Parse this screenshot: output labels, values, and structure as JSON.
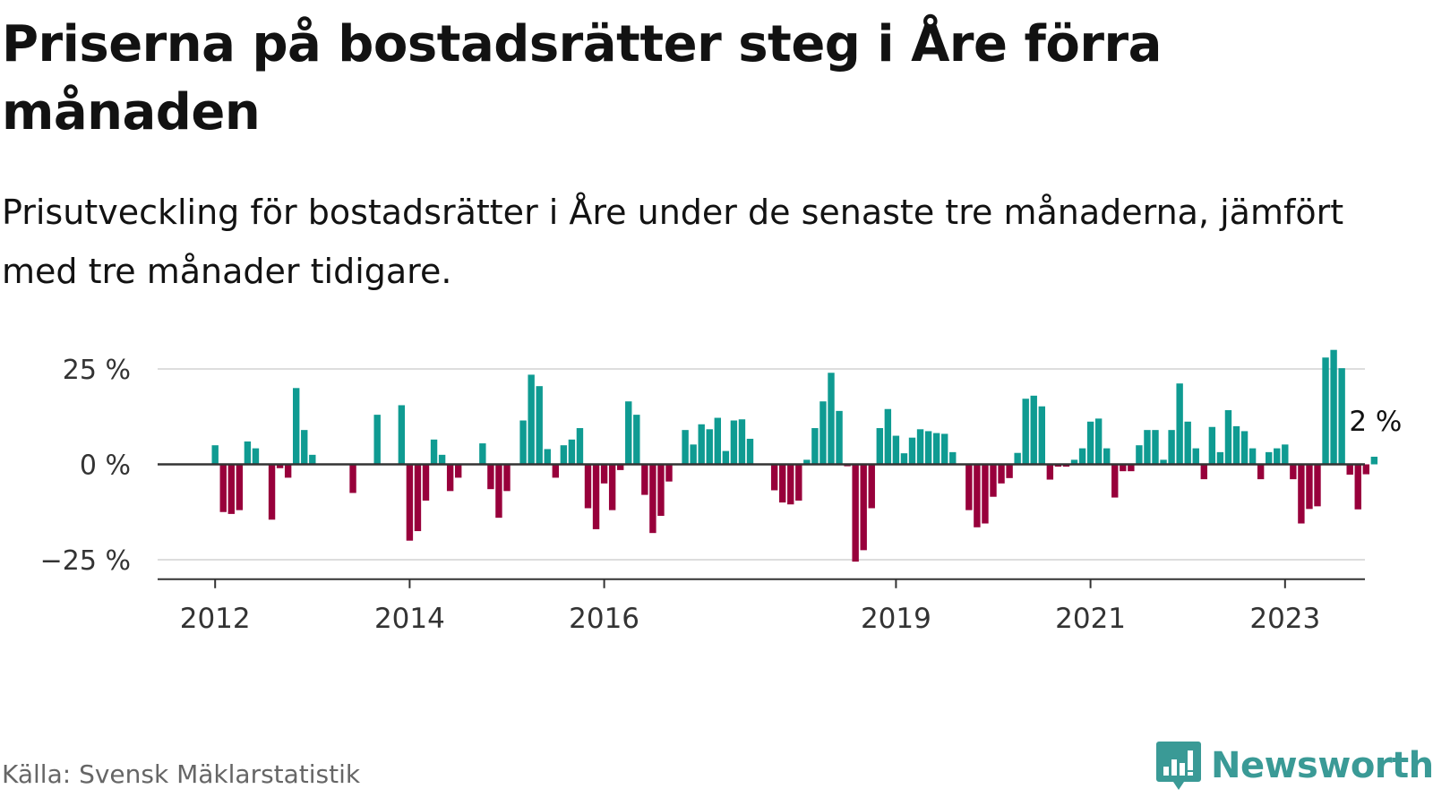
{
  "title": "Priserna på bostadsrätter steg i Åre förra månaden",
  "subtitle": "Prisutveckling för bostadsrätter i Åre under de senaste tre månaderna, jämfört med tre månader tidigare.",
  "source": "Källa: Svensk Mäklarstatistik",
  "logo_text": "Newsworthy",
  "colors": {
    "positive": "#0f9b92",
    "negative": "#98003b",
    "grid": "#dddddd",
    "axis": "#333333",
    "logo": "#3a9a96"
  },
  "chart_data": {
    "type": "bar",
    "start_month": "2011-03",
    "y_ticks": [
      {
        "value": 25,
        "label": "25 %"
      },
      {
        "value": 0,
        "label": "0 %"
      },
      {
        "value": -25,
        "label": "−25 %"
      }
    ],
    "x_ticks": [
      {
        "month": "2012-01",
        "label": "2012"
      },
      {
        "month": "2014-01",
        "label": "2014"
      },
      {
        "month": "2016-01",
        "label": "2016"
      },
      {
        "month": "2019-01",
        "label": "2019"
      },
      {
        "month": "2021-01",
        "label": "2021"
      },
      {
        "month": "2023-01",
        "label": "2023"
      }
    ],
    "ylim": [
      -30,
      33
    ],
    "grid": true,
    "annotation": {
      "text": "2 %"
    },
    "values": [
      null,
      null,
      null,
      null,
      null,
      null,
      null,
      null,
      null,
      null,
      5,
      -12.5,
      -13,
      -12,
      6,
      4.2,
      null,
      -14.5,
      -1,
      -3.5,
      20,
      9,
      2.5,
      null,
      null,
      null,
      null,
      -7.5,
      null,
      null,
      13,
      null,
      null,
      15.5,
      -20,
      -17.5,
      -9.5,
      6.5,
      2.5,
      -7,
      -3.5,
      null,
      null,
      5.5,
      -6.5,
      -14,
      -7,
      null,
      11.5,
      23.5,
      20.5,
      4,
      -3.5,
      5,
      6.5,
      9.5,
      -11.5,
      -17,
      -5,
      -12,
      -1.5,
      16.5,
      13,
      -8,
      -18,
      -13.5,
      -4.5,
      null,
      9,
      5.2,
      10.5,
      9.2,
      12.2,
      3.5,
      11.5,
      11.8,
      6.7,
      null,
      null,
      -6.8,
      -10,
      -10.5,
      -9.5,
      1.2,
      9.5,
      16.5,
      24,
      14,
      -0.5,
      -25.5,
      -22.5,
      -11.5,
      9.5,
      14.5,
      7.5,
      2.9,
      7,
      9.2,
      8.7,
      8.2,
      8,
      3.2,
      null,
      -12,
      -16.5,
      -15.5,
      -8.5,
      -5,
      -3.6,
      3,
      17.2,
      18,
      15.2,
      -4,
      -0.6,
      -0.6,
      1.2,
      4.2,
      11.2,
      12,
      4.2,
      -8.7,
      -1.8,
      -1.8,
      5,
      9,
      9,
      1.2,
      9,
      21.2,
      11.2,
      4.2,
      -3.9,
      9.8,
      3.2,
      14.2,
      10,
      8.7,
      4.2,
      -3.9,
      3.2,
      4.2,
      5.2,
      -3.9,
      -15.5,
      -11.7,
      -11,
      28,
      30,
      25.2,
      -2.7,
      -11.8,
      -2.6,
      2
    ]
  }
}
